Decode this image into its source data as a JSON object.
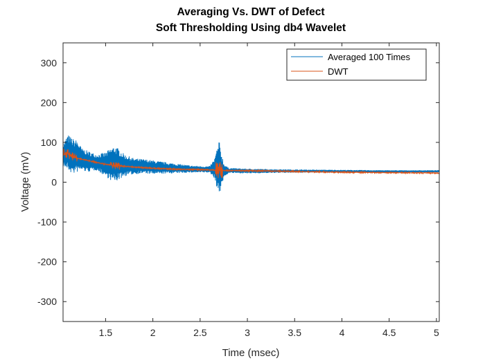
{
  "chart_data": {
    "type": "line",
    "title": "Averaging Vs. DWT of Defect",
    "subtitle": "Soft Thresholding Using db4 Wavelet",
    "xlabel": "Time (msec)",
    "ylabel": "Voltage (mV)",
    "xlim": [
      1.05,
      5.03
    ],
    "ylim": [
      -350,
      350
    ],
    "xticks": [
      1.5,
      2,
      2.5,
      3,
      3.5,
      4,
      4.5,
      5
    ],
    "xtick_labels": [
      "1.5",
      "2",
      "2.5",
      "3",
      "3.5",
      "4",
      "4.5",
      "5"
    ],
    "yticks": [
      -300,
      -200,
      -100,
      0,
      100,
      200,
      300
    ],
    "ytick_labels": [
      "-300",
      "-200",
      "-100",
      "0",
      "100",
      "200",
      "300"
    ],
    "grid": false,
    "legend_position": "top-right",
    "series": [
      {
        "name": "Averaged 100 Times",
        "color": "#0072BD",
        "style": "dense noisy band",
        "x": [
          1.05,
          1.1,
          1.15,
          1.2,
          1.25,
          1.3,
          1.4,
          1.5,
          1.55,
          1.6,
          1.7,
          1.8,
          1.9,
          2.0,
          2.2,
          2.4,
          2.6,
          2.65,
          2.7,
          2.75,
          2.8,
          3.0,
          3.2,
          3.5,
          4.0,
          4.5,
          5.03
        ],
        "upper": [
          95,
          120,
          110,
          105,
          85,
          80,
          70,
          75,
          85,
          92,
          70,
          60,
          58,
          55,
          48,
          42,
          40,
          58,
          105,
          48,
          36,
          34,
          33,
          32,
          31,
          30,
          30
        ],
        "lower": [
          40,
          30,
          20,
          25,
          30,
          25,
          30,
          15,
          5,
          0,
          15,
          20,
          22,
          20,
          22,
          24,
          24,
          10,
          -35,
          10,
          23,
          22,
          23,
          24,
          24,
          24,
          25
        ]
      },
      {
        "name": "DWT",
        "color": "#D95319",
        "x": [
          1.05,
          1.1,
          1.15,
          1.2,
          1.3,
          1.4,
          1.5,
          1.6,
          1.7,
          1.8,
          2.0,
          2.2,
          2.4,
          2.6,
          2.7,
          2.8,
          3.0,
          3.5,
          4.0,
          4.5,
          5.03
        ],
        "values": [
          70,
          72,
          65,
          60,
          55,
          50,
          45,
          42,
          40,
          38,
          35,
          33,
          32,
          31,
          30,
          29,
          29,
          27,
          25,
          24,
          23
        ]
      }
    ]
  }
}
